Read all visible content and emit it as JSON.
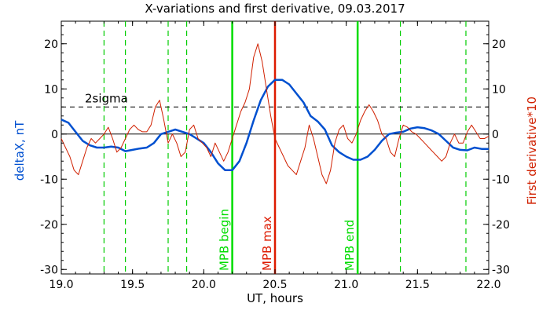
{
  "chart_data": {
    "type": "line",
    "title": "X-variations and first derivative, 09.03.2017",
    "xlabel": "UT, hours",
    "ylabel_left": "deltaX, nT",
    "ylabel_right": "First derivative*10",
    "xlim": [
      19.0,
      22.0
    ],
    "ylim": [
      -31,
      25
    ],
    "x_ticks": [
      "19.0",
      "19.5",
      "20.0",
      "20.5",
      "21.0",
      "21.5",
      "22.0"
    ],
    "y_ticks": [
      "20",
      "10",
      "0",
      "-10",
      "-20",
      "-30"
    ],
    "colors": {
      "deltaX": "#0050d0",
      "derivative": "#d02000",
      "mpb_marker": "#00dd00",
      "mpb_max": "#dd1a00",
      "dashed_lines": "#00cc00"
    },
    "threshold": {
      "label": "2sigma",
      "value": 6
    },
    "zero_line": 0,
    "markers": [
      {
        "label": "MPB begin",
        "x": 20.2,
        "kind": "boundary"
      },
      {
        "label": "MPB max",
        "x": 20.5,
        "kind": "max"
      },
      {
        "label": "MPB end",
        "x": 21.08,
        "kind": "boundary"
      }
    ],
    "dashed_verticals": [
      19.3,
      19.45,
      19.75,
      19.88,
      21.38,
      21.84
    ],
    "series": [
      {
        "key": "deltaX",
        "x": [
          19.0,
          19.05,
          19.1,
          19.15,
          19.2,
          19.25,
          19.3,
          19.35,
          19.4,
          19.45,
          19.5,
          19.55,
          19.6,
          19.65,
          19.7,
          19.75,
          19.8,
          19.85,
          19.9,
          19.95,
          20.0,
          20.05,
          20.1,
          20.15,
          20.2,
          20.25,
          20.3,
          20.35,
          20.4,
          20.45,
          20.5,
          20.55,
          20.6,
          20.65,
          20.7,
          20.75,
          20.8,
          20.85,
          20.9,
          20.95,
          21.0,
          21.05,
          21.1,
          21.15,
          21.2,
          21.25,
          21.3,
          21.35,
          21.4,
          21.45,
          21.5,
          21.55,
          21.6,
          21.65,
          21.7,
          21.75,
          21.8,
          21.85,
          21.9,
          21.95,
          22.0
        ],
        "values": [
          3.2,
          2.5,
          0.5,
          -1.5,
          -2.5,
          -3,
          -3,
          -2.8,
          -3,
          -3.8,
          -3.5,
          -3.2,
          -3,
          -2,
          0,
          0.5,
          1,
          0.5,
          0,
          -1,
          -2,
          -4,
          -6.5,
          -8,
          -8,
          -6,
          -2,
          3,
          7.5,
          10.5,
          12,
          12,
          11,
          9,
          7,
          4,
          2.8,
          1,
          -2.5,
          -4,
          -5,
          -5.7,
          -5.7,
          -5,
          -3.5,
          -1.5,
          0,
          0.3,
          0.5,
          1.2,
          1.5,
          1.3,
          0.8,
          0,
          -1.5,
          -3,
          -3.5,
          -3.6,
          -3,
          -3.3,
          -3.3
        ]
      },
      {
        "key": "derivative",
        "x": [
          19.0,
          19.03,
          19.06,
          19.09,
          19.12,
          19.15,
          19.18,
          19.21,
          19.24,
          19.27,
          19.3,
          19.33,
          19.36,
          19.39,
          19.42,
          19.45,
          19.48,
          19.51,
          19.54,
          19.57,
          19.6,
          19.63,
          19.66,
          19.69,
          19.72,
          19.75,
          19.78,
          19.81,
          19.84,
          19.87,
          19.9,
          19.93,
          19.96,
          19.99,
          20.02,
          20.05,
          20.08,
          20.11,
          20.14,
          20.17,
          20.2,
          20.23,
          20.26,
          20.29,
          20.32,
          20.35,
          20.38,
          20.41,
          20.44,
          20.47,
          20.5,
          20.53,
          20.56,
          20.59,
          20.62,
          20.65,
          20.68,
          20.71,
          20.74,
          20.77,
          20.8,
          20.83,
          20.86,
          20.89,
          20.92,
          20.95,
          20.98,
          21.01,
          21.04,
          21.07,
          21.1,
          21.13,
          21.16,
          21.19,
          21.22,
          21.25,
          21.28,
          21.31,
          21.34,
          21.37,
          21.4,
          21.43,
          21.46,
          21.49,
          21.52,
          21.55,
          21.58,
          21.61,
          21.64,
          21.67,
          21.7,
          21.73,
          21.76,
          21.79,
          21.82,
          21.85,
          21.88,
          21.91,
          21.94,
          21.97,
          22.0
        ],
        "values": [
          -1,
          -3,
          -5,
          -8,
          -9,
          -6,
          -3,
          -1,
          -2,
          -1,
          0,
          1.5,
          -1,
          -4,
          -3,
          -1,
          1,
          2,
          1,
          0.5,
          0.5,
          2,
          6,
          7.5,
          3,
          -2,
          0,
          -2,
          -5,
          -4,
          1,
          2,
          -1,
          -2,
          -3,
          -5,
          -2,
          -4,
          -6,
          -4,
          -1,
          2,
          5,
          7,
          10,
          17,
          20,
          16,
          10,
          4,
          -1,
          -3,
          -5,
          -7,
          -8,
          -9,
          -6,
          -3,
          2,
          -1,
          -5,
          -9,
          -11,
          -8,
          -2,
          1,
          2,
          -1,
          -2,
          0,
          3,
          5,
          6.5,
          5,
          3,
          0,
          -1,
          -4,
          -5,
          -1,
          2,
          1.5,
          0.5,
          0,
          -1,
          -2,
          -3,
          -4,
          -5,
          -6,
          -5,
          -2,
          0,
          -2,
          -2,
          0.5,
          2,
          0.5,
          -1,
          -1,
          -0.5
        ]
      }
    ]
  }
}
